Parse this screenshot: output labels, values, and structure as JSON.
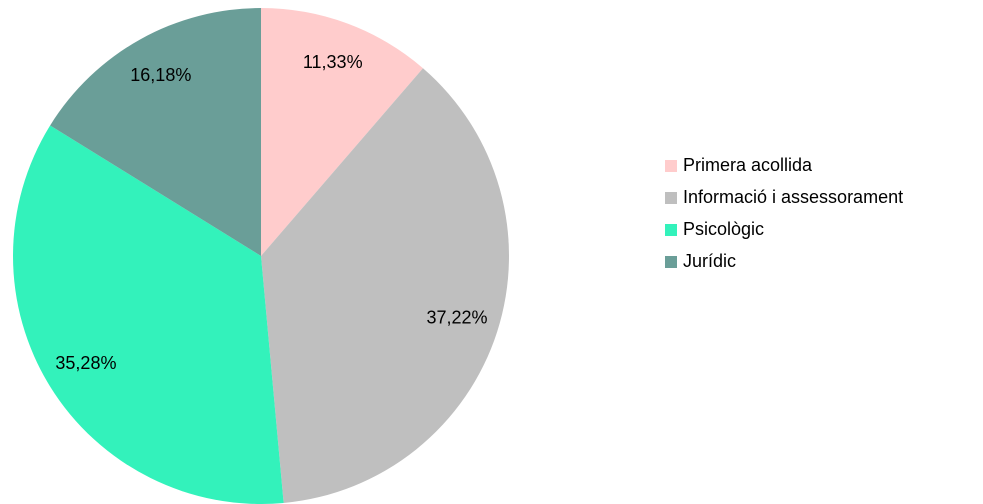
{
  "chart_data": {
    "type": "pie",
    "categories": [
      "Primera acollida",
      "Informació i assessorament",
      "Psicològic",
      "Jurídic"
    ],
    "values": [
      11.33,
      37.22,
      35.28,
      16.18
    ],
    "value_labels": [
      "11,33%",
      "37,22%",
      "35,28%",
      "16,18%"
    ],
    "colors": [
      "#ffcccc",
      "#bfbfbf",
      "#33f2bb",
      "#6a9e98"
    ],
    "legend": "right"
  }
}
